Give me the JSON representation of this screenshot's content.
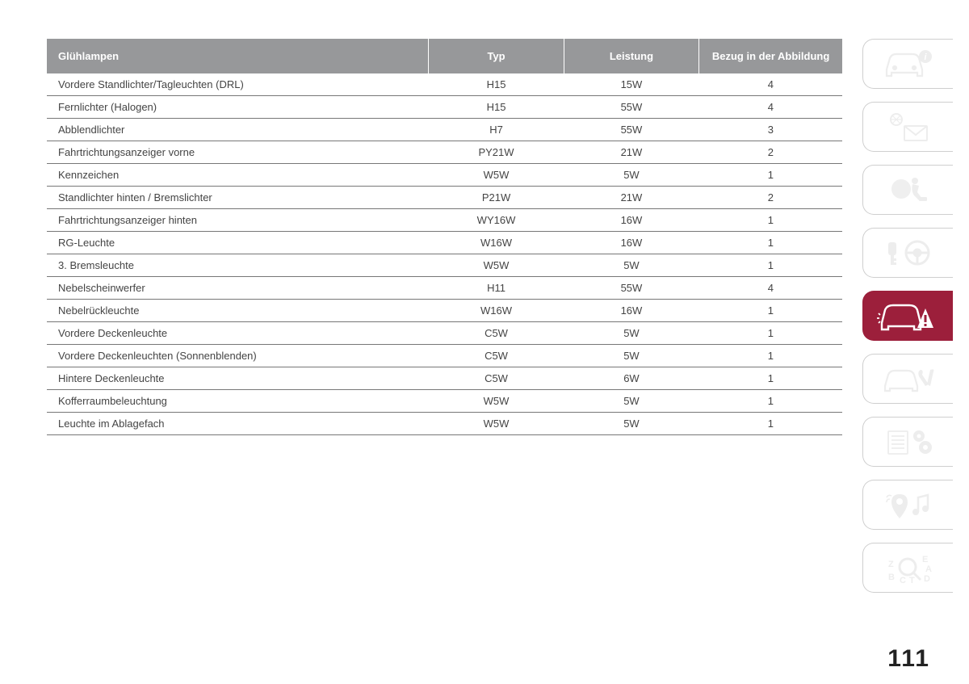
{
  "page_number": "111",
  "colors": {
    "header_bg": "#97989a",
    "header_text": "#ffffff",
    "row_border": "#777777",
    "active_tab_bg": "#9c1f3b",
    "inactive_icon": "#d9d9d9",
    "body_text": "#444444"
  },
  "table": {
    "columns": [
      "Glühlampen",
      "Typ",
      "Leistung",
      "Bezug in der Abbildung"
    ],
    "rows": [
      [
        "Vordere Standlichter/Tagleuchten (DRL)",
        "H15",
        "15W",
        "4"
      ],
      [
        "Fernlichter (Halogen)",
        "H15",
        "55W",
        "4"
      ],
      [
        "Abblendlichter",
        "H7",
        "55W",
        "3"
      ],
      [
        "Fahrtrichtungsanzeiger vorne",
        "PY21W",
        "21W",
        "2"
      ],
      [
        "Kennzeichen",
        "W5W",
        "5W",
        "1"
      ],
      [
        "Standlichter hinten / Bremslichter",
        "P21W",
        "21W",
        "2"
      ],
      [
        "Fahrtrichtungsanzeiger hinten",
        "WY16W",
        "16W",
        "1"
      ],
      [
        "RG-Leuchte",
        "W16W",
        "16W",
        "1"
      ],
      [
        "3. Bremsleuchte",
        "W5W",
        "5W",
        "1"
      ],
      [
        "Nebelscheinwerfer",
        "H11",
        "55W",
        "4"
      ],
      [
        "Nebelrückleuchte",
        "W16W",
        "16W",
        "1"
      ],
      [
        "Vordere Deckenleuchte",
        "C5W",
        "5W",
        "1"
      ],
      [
        "Vordere Deckenleuchten (Sonnenblenden)",
        "C5W",
        "5W",
        "1"
      ],
      [
        "Hintere Deckenleuchte",
        "C5W",
        "6W",
        "1"
      ],
      [
        "Kofferraumbeleuchtung",
        "W5W",
        "5W",
        "1"
      ],
      [
        "Leuchte im Ablagefach",
        "W5W",
        "5W",
        "1"
      ]
    ]
  },
  "sidebar": {
    "tabs": [
      {
        "name": "car-info-icon",
        "active": false
      },
      {
        "name": "messages-icon",
        "active": false
      },
      {
        "name": "airbag-icon",
        "active": false
      },
      {
        "name": "key-steering-icon",
        "active": false
      },
      {
        "name": "car-warning-icon",
        "active": true
      },
      {
        "name": "car-tools-icon",
        "active": false
      },
      {
        "name": "list-gears-icon",
        "active": false
      },
      {
        "name": "location-music-icon",
        "active": false
      },
      {
        "name": "search-letters-icon",
        "active": false
      }
    ]
  }
}
